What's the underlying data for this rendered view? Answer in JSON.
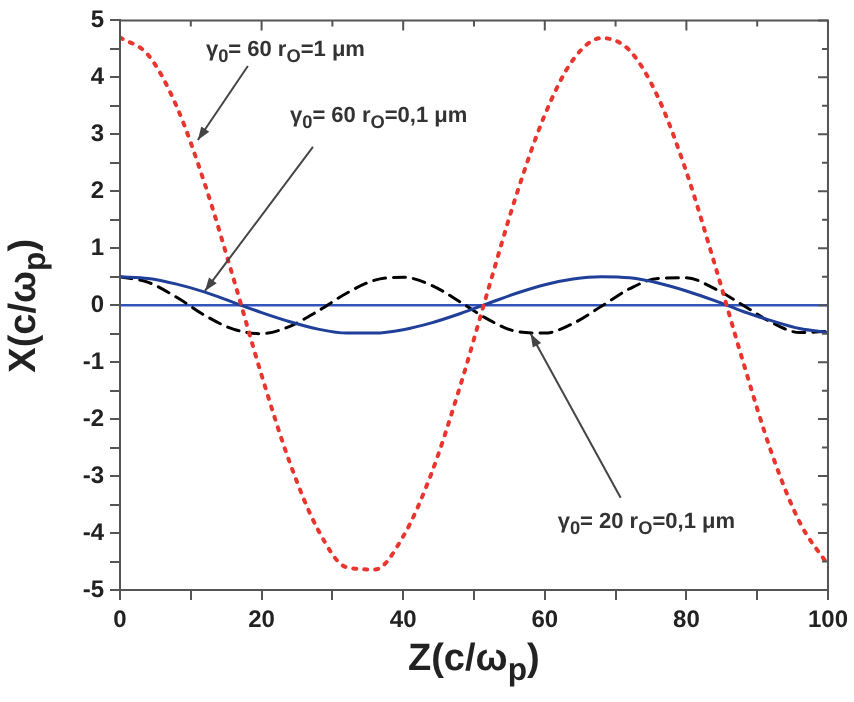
{
  "chart_data": {
    "type": "line",
    "xlabel": "Z(c/ω$_{p}$)",
    "ylabel": "X(c/ω$_{p}$)",
    "x": [
      0,
      4,
      8,
      12,
      16,
      20,
      24,
      28,
      32,
      36,
      40,
      44,
      48,
      52,
      56,
      60,
      64,
      68,
      72,
      76,
      80,
      84,
      88,
      92,
      96,
      100
    ],
    "series": [
      {
        "color": "#e8352e",
        "line_style": "dotted",
        "values": [
          4.7,
          4.39,
          3.49,
          2.12,
          0.48,
          -1.23,
          -2.77,
          -3.95,
          -4.6,
          -4.64,
          -4.06,
          -2.95,
          -1.44,
          0.27,
          1.94,
          3.34,
          4.31,
          4.69,
          4.47,
          3.65,
          2.34,
          0.72,
          -0.99,
          -2.58,
          -3.81,
          -4.56
        ]
      },
      {
        "color": "#1f3f99",
        "line_style": "solid",
        "values": [
          0.5,
          0.47,
          0.37,
          0.23,
          0.05,
          -0.13,
          -0.29,
          -0.42,
          -0.49,
          -0.49,
          -0.43,
          -0.31,
          -0.15,
          0.03,
          0.21,
          0.36,
          0.46,
          0.5,
          0.48,
          0.39,
          0.25,
          0.08,
          -0.11,
          -0.27,
          -0.41,
          -0.48
        ]
      },
      {
        "color": "#000000",
        "line_style": "dashed",
        "values": [
          0.5,
          0.4,
          0.14,
          -0.18,
          -0.42,
          -0.5,
          -0.37,
          -0.1,
          0.21,
          0.44,
          0.49,
          0.35,
          0.06,
          -0.25,
          -0.46,
          -0.49,
          -0.32,
          -0.02,
          0.29,
          0.47,
          0.48,
          0.29,
          0,
          -0.3,
          -0.48,
          -0.46
        ]
      }
    ],
    "xlim": [
      0,
      100
    ],
    "xticks": [
      0,
      {
        "value": 10,
        "label": null
      },
      20,
      {
        "value": 30,
        "label": null
      },
      40,
      {
        "value": 50,
        "label": null
      },
      60,
      {
        "value": 70,
        "label": null
      },
      80,
      {
        "value": 90,
        "label": null
      },
      100
    ],
    "ylim": [
      -5,
      5
    ],
    "yticks": [
      -5,
      {
        "value": -4.5,
        "label": null
      },
      -4,
      {
        "value": -3.5,
        "label": null
      },
      -3,
      {
        "value": -2.5,
        "label": null
      },
      -2,
      {
        "value": -1.5,
        "label": null
      },
      -1,
      {
        "value": -0.5,
        "label": null
      },
      0,
      {
        "value": 0.5,
        "label": null
      },
      1,
      {
        "value": 1.5,
        "label": null
      },
      2,
      {
        "value": 2.5,
        "label": null
      },
      3,
      {
        "value": 3.5,
        "label": null
      },
      4,
      {
        "value": 4.5,
        "label": null
      },
      5
    ],
    "ref_lines": [
      {
        "axis": "y",
        "value": 0,
        "color": "#3355bb"
      }
    ],
    "annotations": [
      {
        "text": "γ$_{0}$= 60  r$_{O}$=1 μm",
        "x": 11,
        "y": 2.9
      },
      {
        "text": "γ$_{0}$= 60  r$_{O}$=0,1 μm",
        "x": 12,
        "y": 0.25
      },
      {
        "text": "γ$_{0}$= 20   r$_{O}$=0,1 μm",
        "x": 58,
        "y": -0.5
      }
    ],
    "grid": false,
    "legend": false,
    "marker": "none"
  }
}
